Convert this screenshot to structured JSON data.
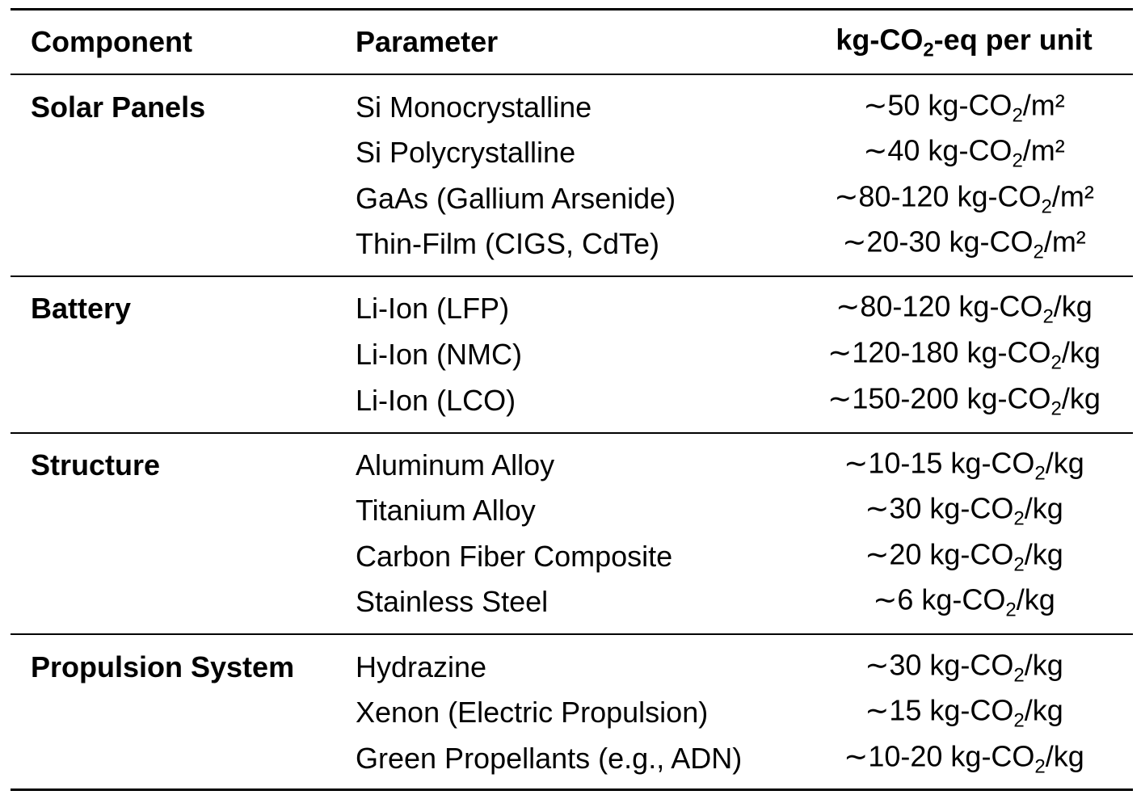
{
  "header": {
    "component": "Component",
    "parameter": "Parameter",
    "value_prefix": "kg-CO",
    "value_sub": "2",
    "value_suffix": "-eq per unit"
  },
  "groups": [
    {
      "component": "Solar Panels",
      "rows": [
        {
          "parameter": "Si Monocrystalline",
          "pre": "∼50 kg-CO",
          "sub": "2",
          "post": "/m²"
        },
        {
          "parameter": "Si Polycrystalline",
          "pre": "∼40 kg-CO",
          "sub": "2",
          "post": "/m²"
        },
        {
          "parameter": "GaAs (Gallium Arsenide)",
          "pre": "∼80-120 kg-CO",
          "sub": "2",
          "post": "/m²"
        },
        {
          "parameter": "Thin-Film (CIGS, CdTe)",
          "pre": "∼20-30 kg-CO",
          "sub": "2",
          "post": "/m²"
        }
      ]
    },
    {
      "component": "Battery",
      "rows": [
        {
          "parameter": "Li-Ion (LFP)",
          "pre": "∼80-120 kg-CO",
          "sub": "2",
          "post": "/kg"
        },
        {
          "parameter": "Li-Ion (NMC)",
          "pre": "∼120-180 kg-CO",
          "sub": "2",
          "post": "/kg"
        },
        {
          "parameter": "Li-Ion (LCO)",
          "pre": "∼150-200 kg-CO",
          "sub": "2",
          "post": "/kg"
        }
      ]
    },
    {
      "component": "Structure",
      "rows": [
        {
          "parameter": "Aluminum Alloy",
          "pre": "∼10-15 kg-CO",
          "sub": "2",
          "post": "/kg"
        },
        {
          "parameter": "Titanium Alloy",
          "pre": "∼30 kg-CO",
          "sub": "2",
          "post": "/kg"
        },
        {
          "parameter": "Carbon Fiber Composite",
          "pre": "∼20 kg-CO",
          "sub": "2",
          "post": "/kg"
        },
        {
          "parameter": "Stainless Steel",
          "pre": "∼6 kg-CO",
          "sub": "2",
          "post": "/kg"
        }
      ]
    },
    {
      "component": "Propulsion System",
      "rows": [
        {
          "parameter": "Hydrazine",
          "pre": "∼30 kg-CO",
          "sub": "2",
          "post": "/kg"
        },
        {
          "parameter": "Xenon (Electric Propulsion)",
          "pre": "∼15 kg-CO",
          "sub": "2",
          "post": "/kg"
        },
        {
          "parameter": "Green Propellants (e.g., ADN)",
          "pre": "∼10-20 kg-CO",
          "sub": "2",
          "post": "/kg"
        }
      ]
    }
  ]
}
